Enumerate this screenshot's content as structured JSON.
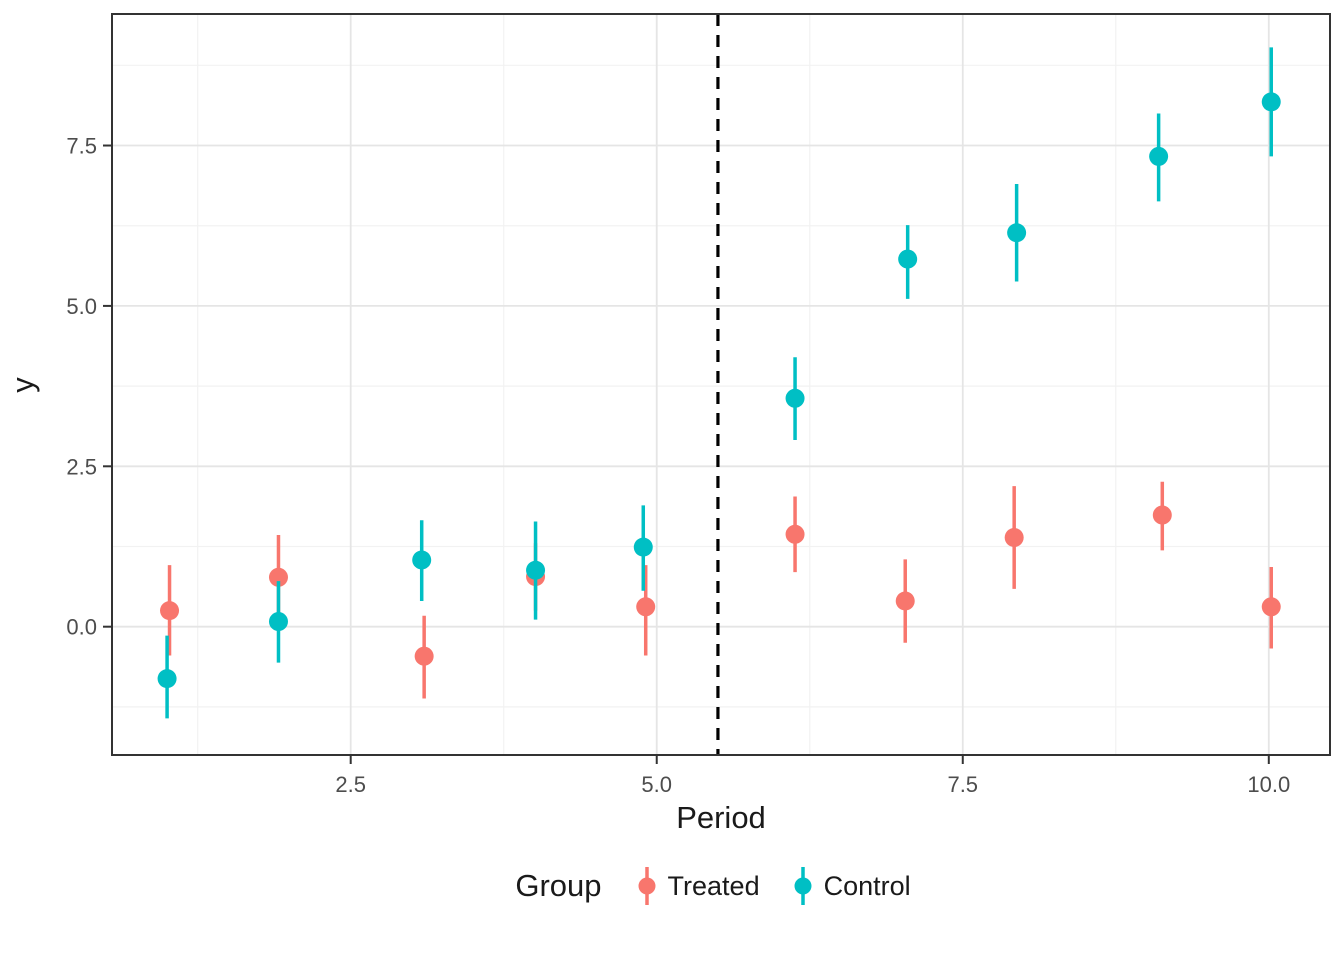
{
  "chart_data": {
    "type": "pointrange",
    "xlabel": "Period",
    "ylabel": "y",
    "xlim": [
      0.55,
      10.5
    ],
    "ylim": [
      -2.0,
      9.55
    ],
    "grid": true,
    "x_major_ticks": [
      2.5,
      5.0,
      7.5,
      10.0
    ],
    "x_tick_labels": [
      "2.5",
      "5.0",
      "7.5",
      "10.0"
    ],
    "x_minor_ticks": [
      1.25,
      3.75,
      6.25,
      8.75
    ],
    "y_major_ticks": [
      0.0,
      2.5,
      5.0,
      7.5
    ],
    "y_tick_labels": [
      "0.0",
      "2.5",
      "5.0",
      "7.5"
    ],
    "y_minor_ticks": [
      -1.25,
      1.25,
      3.75,
      6.25,
      8.75
    ],
    "vline": {
      "x": 5.5,
      "linetype": "dashed",
      "color": "#000000"
    },
    "legend": {
      "title": "Group",
      "position": "bottom",
      "entries": [
        {
          "label": "Treated",
          "color": "#F8766D"
        },
        {
          "label": "Control",
          "color": "#00BFC4"
        }
      ]
    },
    "series": [
      {
        "name": "Treated",
        "color": "#F8766D",
        "points": [
          {
            "x": 1.02,
            "y": 0.25,
            "ymin": -0.45,
            "ymax": 0.96
          },
          {
            "x": 1.91,
            "y": 0.77,
            "ymin": 0.12,
            "ymax": 1.43
          },
          {
            "x": 3.1,
            "y": -0.46,
            "ymin": -1.12,
            "ymax": 0.17
          },
          {
            "x": 4.01,
            "y": 0.78,
            "ymin": 0.25,
            "ymax": 1.3
          },
          {
            "x": 4.91,
            "y": 0.31,
            "ymin": -0.45,
            "ymax": 0.96
          },
          {
            "x": 6.13,
            "y": 1.44,
            "ymin": 0.85,
            "ymax": 2.03
          },
          {
            "x": 7.03,
            "y": 0.4,
            "ymin": -0.25,
            "ymax": 1.05
          },
          {
            "x": 7.92,
            "y": 1.39,
            "ymin": 0.59,
            "ymax": 2.19
          },
          {
            "x": 9.13,
            "y": 1.74,
            "ymin": 1.19,
            "ymax": 2.26
          },
          {
            "x": 10.02,
            "y": 0.31,
            "ymin": -0.34,
            "ymax": 0.93
          }
        ]
      },
      {
        "name": "Control",
        "color": "#00BFC4",
        "points": [
          {
            "x": 1.0,
            "y": -0.81,
            "ymin": -1.43,
            "ymax": -0.14
          },
          {
            "x": 1.91,
            "y": 0.08,
            "ymin": -0.56,
            "ymax": 0.71
          },
          {
            "x": 3.08,
            "y": 1.04,
            "ymin": 0.4,
            "ymax": 1.66
          },
          {
            "x": 4.01,
            "y": 0.88,
            "ymin": 0.11,
            "ymax": 1.64
          },
          {
            "x": 4.89,
            "y": 1.24,
            "ymin": 0.56,
            "ymax": 1.89
          },
          {
            "x": 6.13,
            "y": 3.56,
            "ymin": 2.91,
            "ymax": 4.2
          },
          {
            "x": 7.05,
            "y": 5.73,
            "ymin": 5.11,
            "ymax": 6.26
          },
          {
            "x": 7.94,
            "y": 6.14,
            "ymin": 5.38,
            "ymax": 6.9
          },
          {
            "x": 9.1,
            "y": 7.33,
            "ymin": 6.63,
            "ymax": 8.0
          },
          {
            "x": 10.02,
            "y": 8.18,
            "ymin": 7.33,
            "ymax": 9.03
          }
        ]
      }
    ]
  }
}
